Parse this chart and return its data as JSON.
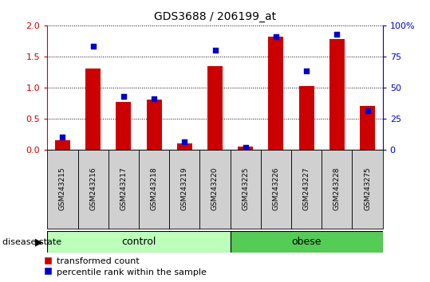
{
  "title": "GDS3688 / 206199_at",
  "samples": [
    "GSM243215",
    "GSM243216",
    "GSM243217",
    "GSM243218",
    "GSM243219",
    "GSM243220",
    "GSM243225",
    "GSM243226",
    "GSM243227",
    "GSM243228",
    "GSM243275"
  ],
  "red_values": [
    0.15,
    1.3,
    0.77,
    0.8,
    0.1,
    1.34,
    0.05,
    1.82,
    1.02,
    1.78,
    0.7
  ],
  "blue_values_pct": [
    10,
    83,
    43,
    41,
    6,
    80,
    2,
    91,
    63,
    93,
    31
  ],
  "n_control": 6,
  "n_obese": 5,
  "ylim_left": [
    0,
    2
  ],
  "ylim_right": [
    0,
    100
  ],
  "yticks_left": [
    0,
    0.5,
    1.0,
    1.5,
    2.0
  ],
  "yticks_right": [
    0,
    25,
    50,
    75,
    100
  ],
  "red_color": "#cc0000",
  "blue_color": "#0000cc",
  "bar_bg_color": "#d0d0d0",
  "control_color": "#bbffbb",
  "obese_color": "#55cc55",
  "bar_width": 0.5,
  "legend_red": "transformed count",
  "legend_blue": "percentile rank within the sample",
  "group_label": "disease state"
}
